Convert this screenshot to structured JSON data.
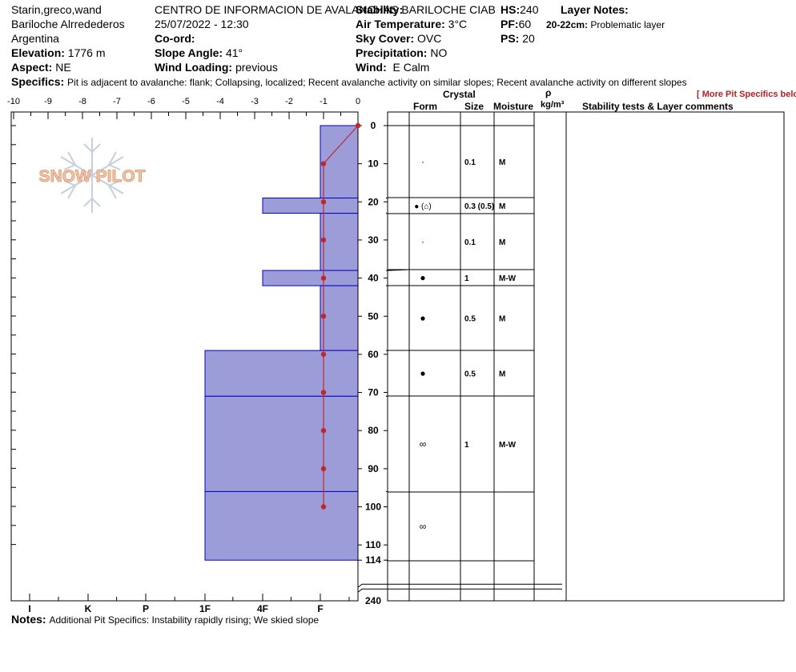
{
  "header": {
    "observers": "Starin,greco,wand",
    "location": "Bariloche Alrredederos",
    "country": "Argentina",
    "elevation_label": "Elevation:",
    "elevation_value": "1776 m",
    "aspect_label": "Aspect:",
    "aspect_value": "NE",
    "organization": "CENTRO DE INFORMACION DE AVALANCHAS BARILOCHE CIAB",
    "datetime": "25/07/2022 - 12:30",
    "coord_label": "Co-ord:",
    "slope_label": "Slope Angle:",
    "slope_value": "41°",
    "wind_loading_label": "Wind Loading:",
    "wind_loading_value": "previous",
    "stability_label": "Stability:",
    "air_temp_label": "Air Temperature:",
    "air_temp_value": "3°C",
    "sky_label": "Sky Cover:",
    "sky_value": "OVC",
    "precip_label": "Precipitation:",
    "precip_value": "NO",
    "wind_label": "Wind:",
    "wind_value": "E Calm",
    "hs_label": "HS:",
    "hs_value": "240",
    "pf_label": "PF:",
    "pf_value": "60",
    "ps_label": "PS:",
    "ps_value": "20",
    "layer_notes_label": "Layer Notes:",
    "layer_note_range": "20-22cm:",
    "layer_note_text": "Problematic layer",
    "specifics_label": "Specifics:",
    "specifics_text": "Pit is adjacent to avalanche: flank;  Collapsing, localized;  Recent avalanche activity on similar slopes; Recent avalanche activity on different slopes",
    "more_specifics": "[ More Pit Specifics below ]"
  },
  "logo_text": "SNOW PILOT",
  "table_headers": {
    "crystal": "Crystal",
    "form": "Form",
    "size": "Size",
    "moisture": "Moisture",
    "rho": "ρ",
    "density_unit": "kg/m³",
    "comments": "Stability tests & Layer comments"
  },
  "notes_label": "Notes:",
  "notes_text": "Additional Pit Specifics: Instability rapidly rising; We skied slope",
  "colors": {
    "hardness_fill": "#9c9cd8",
    "layer_line": "#0000cc",
    "temp_line": "#c0272d"
  },
  "chart_data": {
    "type": "snow-profile",
    "temperature_axis": {
      "label_values": [
        -10,
        -9,
        -8,
        -7,
        -6,
        -5,
        -4,
        -3,
        -2,
        -1,
        0
      ],
      "range": [
        -10,
        0
      ],
      "unit": "°C"
    },
    "depth_axis": {
      "tick_labels": [
        0,
        10,
        20,
        30,
        40,
        50,
        60,
        70,
        80,
        90,
        100,
        110,
        114,
        240
      ],
      "range": [
        0,
        240
      ],
      "break_after": 114
    },
    "hardness_axis": {
      "tick_labels": [
        "I",
        "K",
        "P",
        "1F",
        "4F",
        "F"
      ]
    },
    "temperature_profile": [
      {
        "depth": 0,
        "temp": 0
      },
      {
        "depth": 10,
        "temp": -1
      },
      {
        "depth": 20,
        "temp": -1
      },
      {
        "depth": 30,
        "temp": -1
      },
      {
        "depth": 40,
        "temp": -1
      },
      {
        "depth": 50,
        "temp": -1
      },
      {
        "depth": 60,
        "temp": -1
      },
      {
        "depth": 70,
        "temp": -1
      },
      {
        "depth": 80,
        "temp": -1
      },
      {
        "depth": 90,
        "temp": -1
      },
      {
        "depth": 100,
        "temp": -1
      }
    ],
    "layers": [
      {
        "top": 0,
        "bottom": 19,
        "hardness": "F",
        "form": "·",
        "size": "0.1",
        "moisture": "M"
      },
      {
        "top": 19,
        "bottom": 23,
        "hardness": "4F",
        "form": "● (⌂)",
        "size": "0.3 (0.5)",
        "moisture": "M"
      },
      {
        "top": 23,
        "bottom": 38,
        "hardness": "F",
        "form": "·",
        "size": "0.1",
        "moisture": "M"
      },
      {
        "top": 38,
        "bottom": 42,
        "hardness": "4F",
        "form": "●",
        "size": "1",
        "moisture": "M-W"
      },
      {
        "top": 42,
        "bottom": 59,
        "hardness": "F",
        "form": "●",
        "size": "0.5",
        "moisture": "M"
      },
      {
        "top": 59,
        "bottom": 71,
        "hardness": "1F",
        "form": "●",
        "size": "0.5",
        "moisture": "M"
      },
      {
        "top": 71,
        "bottom": 96,
        "hardness": "1F",
        "form": "∞",
        "size": "1",
        "moisture": "M-W"
      },
      {
        "top": 96,
        "bottom": 114,
        "hardness": "1F",
        "form": "∞",
        "size": "",
        "moisture": ""
      }
    ]
  }
}
